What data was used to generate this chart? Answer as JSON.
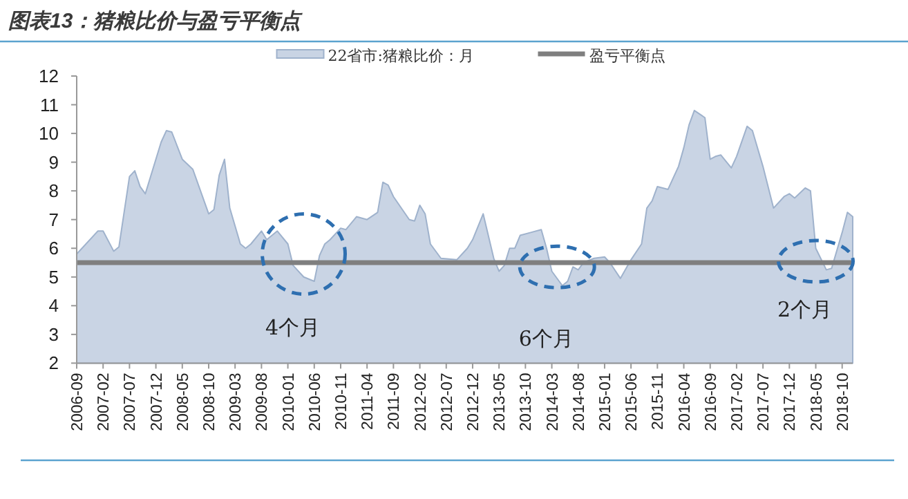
{
  "chart_data": {
    "type": "area",
    "title": "图表13：猪粮比价与盈亏平衡点",
    "x": [
      "2006-09",
      "2007-01",
      "2007-02",
      "2007-04",
      "2007-05",
      "2007-07",
      "2007-08",
      "2007-09",
      "2007-10",
      "2008-01",
      "2008-02",
      "2008-03",
      "2008-05",
      "2008-07",
      "2008-10",
      "2008-11",
      "2008-12",
      "2009-01",
      "2009-02",
      "2009-04",
      "2009-05",
      "2009-06",
      "2009-08",
      "2009-09",
      "2009-11",
      "2010-01",
      "2010-02",
      "2010-04",
      "2010-06",
      "2010-07",
      "2010-08",
      "2010-09",
      "2010-11",
      "2010-12",
      "2011-02",
      "2011-04",
      "2011-06",
      "2011-07",
      "2011-08",
      "2011-09",
      "2011-12",
      "2012-01",
      "2012-02",
      "2012-03",
      "2012-04",
      "2012-06",
      "2012-09",
      "2012-11",
      "2012-12",
      "2013-02",
      "2013-04",
      "2013-05",
      "2013-06",
      "2013-07",
      "2013-08",
      "2013-09",
      "2013-11",
      "2014-01",
      "2014-02",
      "2014-03",
      "2014-05",
      "2014-06",
      "2014-07",
      "2014-08",
      "2014-09",
      "2014-11",
      "2015-01",
      "2015-02",
      "2015-04",
      "2015-06",
      "2015-08",
      "2015-09",
      "2015-10",
      "2015-11",
      "2016-01",
      "2016-03",
      "2016-04",
      "2016-05",
      "2016-06",
      "2016-08",
      "2016-09",
      "2016-10",
      "2016-11",
      "2017-01",
      "2017-02",
      "2017-04",
      "2017-05",
      "2017-07",
      "2017-09",
      "2017-11",
      "2017-12",
      "2018-01",
      "2018-03",
      "2018-04",
      "2018-05",
      "2018-07",
      "2018-08",
      "2018-10",
      "2018-11",
      "2018-12"
    ],
    "series": [
      {
        "name": "22省市:猪粮比价：月",
        "color": "#c9d4e4",
        "values": [
          5.8,
          6.6,
          6.6,
          5.9,
          6.05,
          8.5,
          8.7,
          8.15,
          7.9,
          9.7,
          10.1,
          10.05,
          9.1,
          8.75,
          7.2,
          7.35,
          8.55,
          9.1,
          7.4,
          6.15,
          6.0,
          6.15,
          6.6,
          6.3,
          6.6,
          6.15,
          5.4,
          5.0,
          4.85,
          5.75,
          6.15,
          6.3,
          6.7,
          6.65,
          7.1,
          7.0,
          7.25,
          8.3,
          8.2,
          7.8,
          7.0,
          6.95,
          7.5,
          7.2,
          6.15,
          5.65,
          5.6,
          6.0,
          6.3,
          7.2,
          5.65,
          5.2,
          5.4,
          6.0,
          6.0,
          6.45,
          6.55,
          6.65,
          6.0,
          5.2,
          4.7,
          4.85,
          5.35,
          5.25,
          5.5,
          5.65,
          5.7,
          5.5,
          4.95,
          5.6,
          6.15,
          7.4,
          7.65,
          8.15,
          8.05,
          8.85,
          9.5,
          10.3,
          10.8,
          10.55,
          9.1,
          9.2,
          9.25,
          8.8,
          9.2,
          10.25,
          10.1,
          8.85,
          7.4,
          7.8,
          7.9,
          7.75,
          8.1,
          8.0,
          6.0,
          5.25,
          5.3,
          6.55,
          7.25,
          7.1
        ]
      }
    ],
    "ref_lines": [
      {
        "axis": "y",
        "value": 5.5,
        "label": "盈亏平衡点",
        "color": "#7f7f7f"
      }
    ],
    "annotations": [
      {
        "text": "4个月",
        "x": "2010-04",
        "y": 5.8
      },
      {
        "text": "6个月",
        "x": "2014-04",
        "y": 5.35
      },
      {
        "text": "2个月",
        "x": "2018-05",
        "y": 5.55
      }
    ],
    "xlim": [
      "2006-09",
      "2018-12"
    ],
    "xticks": [
      "2006-09",
      "2007-02",
      "2007-07",
      "2007-12",
      "2008-05",
      "2008-10",
      "2009-03",
      "2009-08",
      "2010-01",
      "2010-06",
      "2010-11",
      "2011-04",
      "2011-09",
      "2012-02",
      "2012-07",
      "2012-12",
      "2013-05",
      "2013-10",
      "2014-03",
      "2014-08",
      "2015-01",
      "2015-06",
      "2015-11",
      "2016-04",
      "2016-09",
      "2017-02",
      "2017-07",
      "2017-12",
      "2018-05",
      "2018-10"
    ],
    "ylim": [
      2,
      12
    ],
    "yticks": [
      2,
      3,
      4,
      5,
      6,
      7,
      8,
      9,
      10,
      11,
      12
    ],
    "legend": "top",
    "grid": false
  }
}
